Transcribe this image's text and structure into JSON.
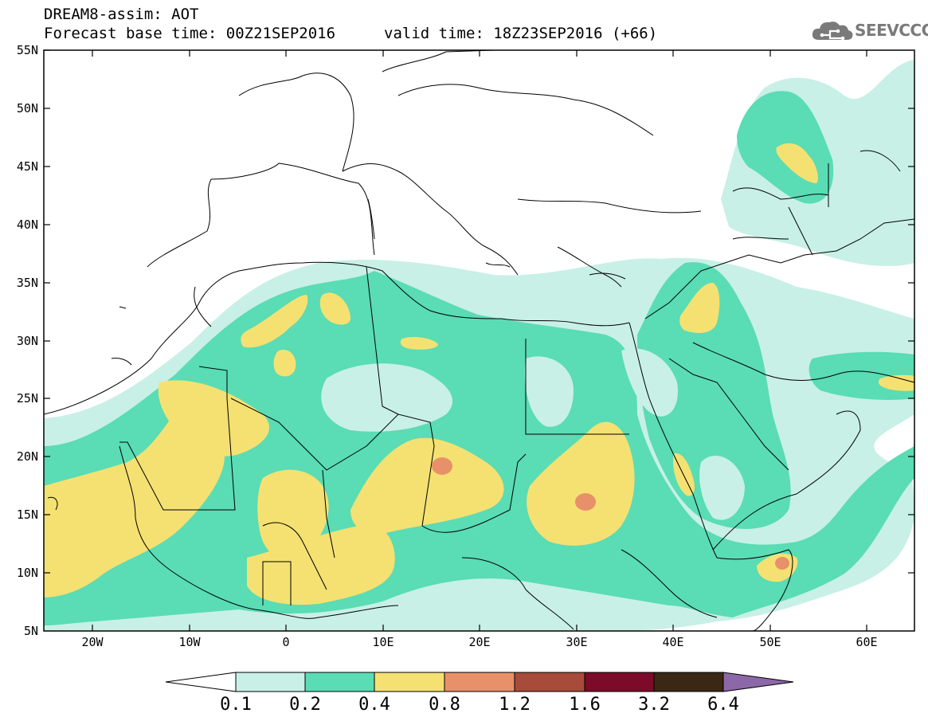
{
  "header": {
    "line1": "DREAM8-assim: AOT",
    "base": "Forecast base time: 00Z21SEP2016",
    "valid": "valid time: 18Z23SEP2016 (+66)"
  },
  "logo": {
    "text": "SEEVCCC",
    "icon": "cloud-icon"
  },
  "axes": {
    "lat_labels": [
      "55N",
      "50N",
      "45N",
      "40N",
      "35N",
      "30N",
      "25N",
      "20N",
      "15N",
      "10N",
      "5N"
    ],
    "lon_labels": [
      "20W",
      "10W",
      "0",
      "10E",
      "20E",
      "30E",
      "40E",
      "50E",
      "60E"
    ]
  },
  "colorbar": {
    "levels": [
      "0.1",
      "0.2",
      "0.4",
      "0.8",
      "1.2",
      "1.6",
      "3.2",
      "6.4"
    ],
    "colors": [
      "#ffffff",
      "#c8f0e6",
      "#5adcb4",
      "#f5e172",
      "#e8906a",
      "#a84b3a",
      "#7d0a28",
      "#3a2814",
      "#8c68a8"
    ]
  }
}
